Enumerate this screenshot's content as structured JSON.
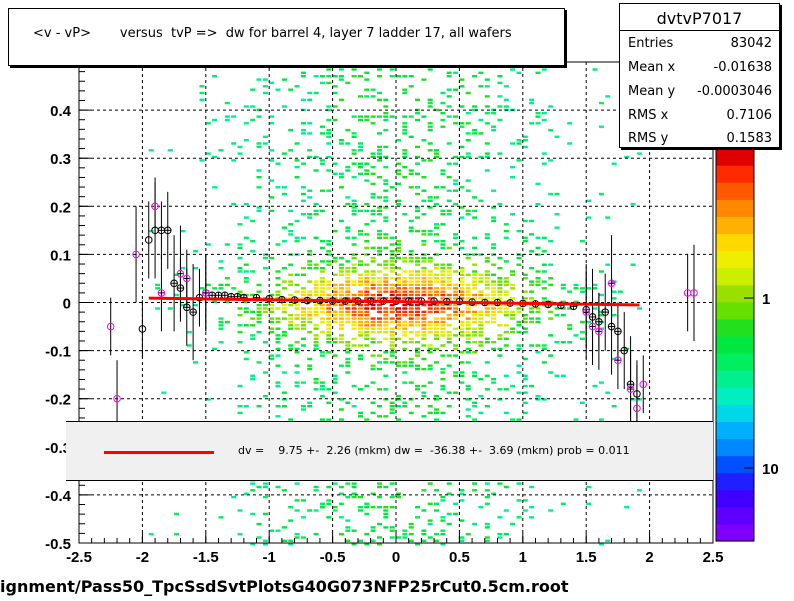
{
  "title": "<v - vP>       versus  tvP =>  dw for barrel 4, layer 7 ladder 17, all wafers",
  "footer": "ignment/Pass50_TpcSsdSvtPlotsG40G073NFP25rCut0.5cm.root",
  "stats": {
    "name": "dvtvP7017",
    "rows": [
      {
        "label": "Entries",
        "value": "83042"
      },
      {
        "label": "Mean x",
        "value": "-0.01638"
      },
      {
        "label": "Mean y",
        "value": "-0.0003046"
      },
      {
        "label": "RMS x",
        "value": "0.7106"
      },
      {
        "label": "RMS y",
        "value": "0.1583"
      }
    ]
  },
  "legend": {
    "text": "dv =    9.75 +-  2.26 (mkm) dw =  -36.38 +-  3.69 (mkm) prob = 0.011"
  },
  "colors": {
    "fit_line": "#ff0000",
    "profile_black": "#000000",
    "profile_magenta": "#ff00ff",
    "palette": [
      "#7f00ff",
      "#5f00ff",
      "#3f00ff",
      "#1f1fff",
      "#0050ff",
      "#0088ff",
      "#00b0ff",
      "#00d8e8",
      "#00eec0",
      "#00f090",
      "#00ee60",
      "#00e840",
      "#22e020",
      "#66e000",
      "#99e000",
      "#ccee00",
      "#eeee00",
      "#ffd800",
      "#ffb000",
      "#ff8800",
      "#ff5800",
      "#ff2a00",
      "#e00000"
    ]
  },
  "chart_data": {
    "type": "heatmap",
    "title": "<v - vP>       versus  tvP =>  dw for barrel 4, layer 7 ladder 17, all wafers",
    "xlim": [
      -2.5,
      2.5
    ],
    "ylim": [
      -0.5,
      0.5
    ],
    "x_ticks": [
      "-2.5",
      "-2",
      "-1.5",
      "-1",
      "-0.5",
      "0",
      "0.5",
      "1",
      "1.5",
      "2",
      "2.5"
    ],
    "y_ticks": [
      "-0.5",
      "-0.4",
      "-0.3",
      "-0.2",
      "-0.1",
      "0",
      "0.1",
      "0.2",
      "0.3",
      "0.4"
    ],
    "grid": true,
    "colorbar_ticks": [
      "1",
      "10"
    ],
    "fit_line": {
      "x": [
        -1.95,
        1.92
      ],
      "y": [
        0.009,
        -0.005
      ]
    },
    "profile_black": {
      "x": [
        -2.0,
        -1.95,
        -1.9,
        -1.85,
        -1.8,
        -1.75,
        -1.7,
        -1.65,
        -1.6,
        -1.55,
        -1.5,
        -1.45,
        -1.4,
        -1.35,
        -1.3,
        -1.25,
        -1.2,
        -1.1,
        -1.0,
        -0.9,
        -0.8,
        -0.7,
        -0.6,
        -0.5,
        -0.4,
        -0.3,
        -0.2,
        -0.1,
        0.0,
        0.1,
        0.2,
        0.3,
        0.4,
        0.5,
        0.6,
        0.7,
        0.8,
        0.9,
        1.0,
        1.1,
        1.2,
        1.3,
        1.4,
        1.5,
        1.55,
        1.6,
        1.65,
        1.7,
        1.75,
        1.8,
        1.85,
        1.9
      ],
      "y": [
        -0.055,
        0.13,
        0.15,
        0.15,
        0.15,
        0.04,
        0.03,
        -0.01,
        -0.02,
        0.01,
        0.02,
        0.015,
        0.015,
        0.015,
        0.012,
        0.012,
        0.01,
        0.01,
        0.008,
        0.006,
        0.005,
        0.004,
        0.004,
        0.003,
        0.003,
        0.003,
        0.003,
        0.003,
        0.003,
        0.003,
        0.003,
        0.003,
        0.002,
        0.002,
        0.001,
        0.0,
        0.0,
        -0.001,
        -0.002,
        -0.003,
        -0.004,
        -0.006,
        -0.008,
        -0.015,
        -0.03,
        -0.04,
        -0.02,
        -0.05,
        -0.06,
        -0.1,
        -0.17,
        -0.19
      ]
    },
    "profile_magenta": {
      "x": [
        -2.25,
        -2.2,
        -2.05,
        -1.9,
        -1.85,
        -1.7,
        -1.65,
        -1.5,
        1.5,
        1.55,
        1.6,
        1.7,
        1.75,
        1.85,
        1.9,
        1.95,
        2.3,
        2.35
      ],
      "y": [
        -0.05,
        -0.2,
        0.1,
        0.2,
        0.02,
        0.06,
        0.05,
        0.02,
        -0.02,
        -0.05,
        -0.06,
        0.04,
        -0.12,
        -0.18,
        -0.22,
        -0.17,
        0.02,
        0.02
      ]
    }
  }
}
